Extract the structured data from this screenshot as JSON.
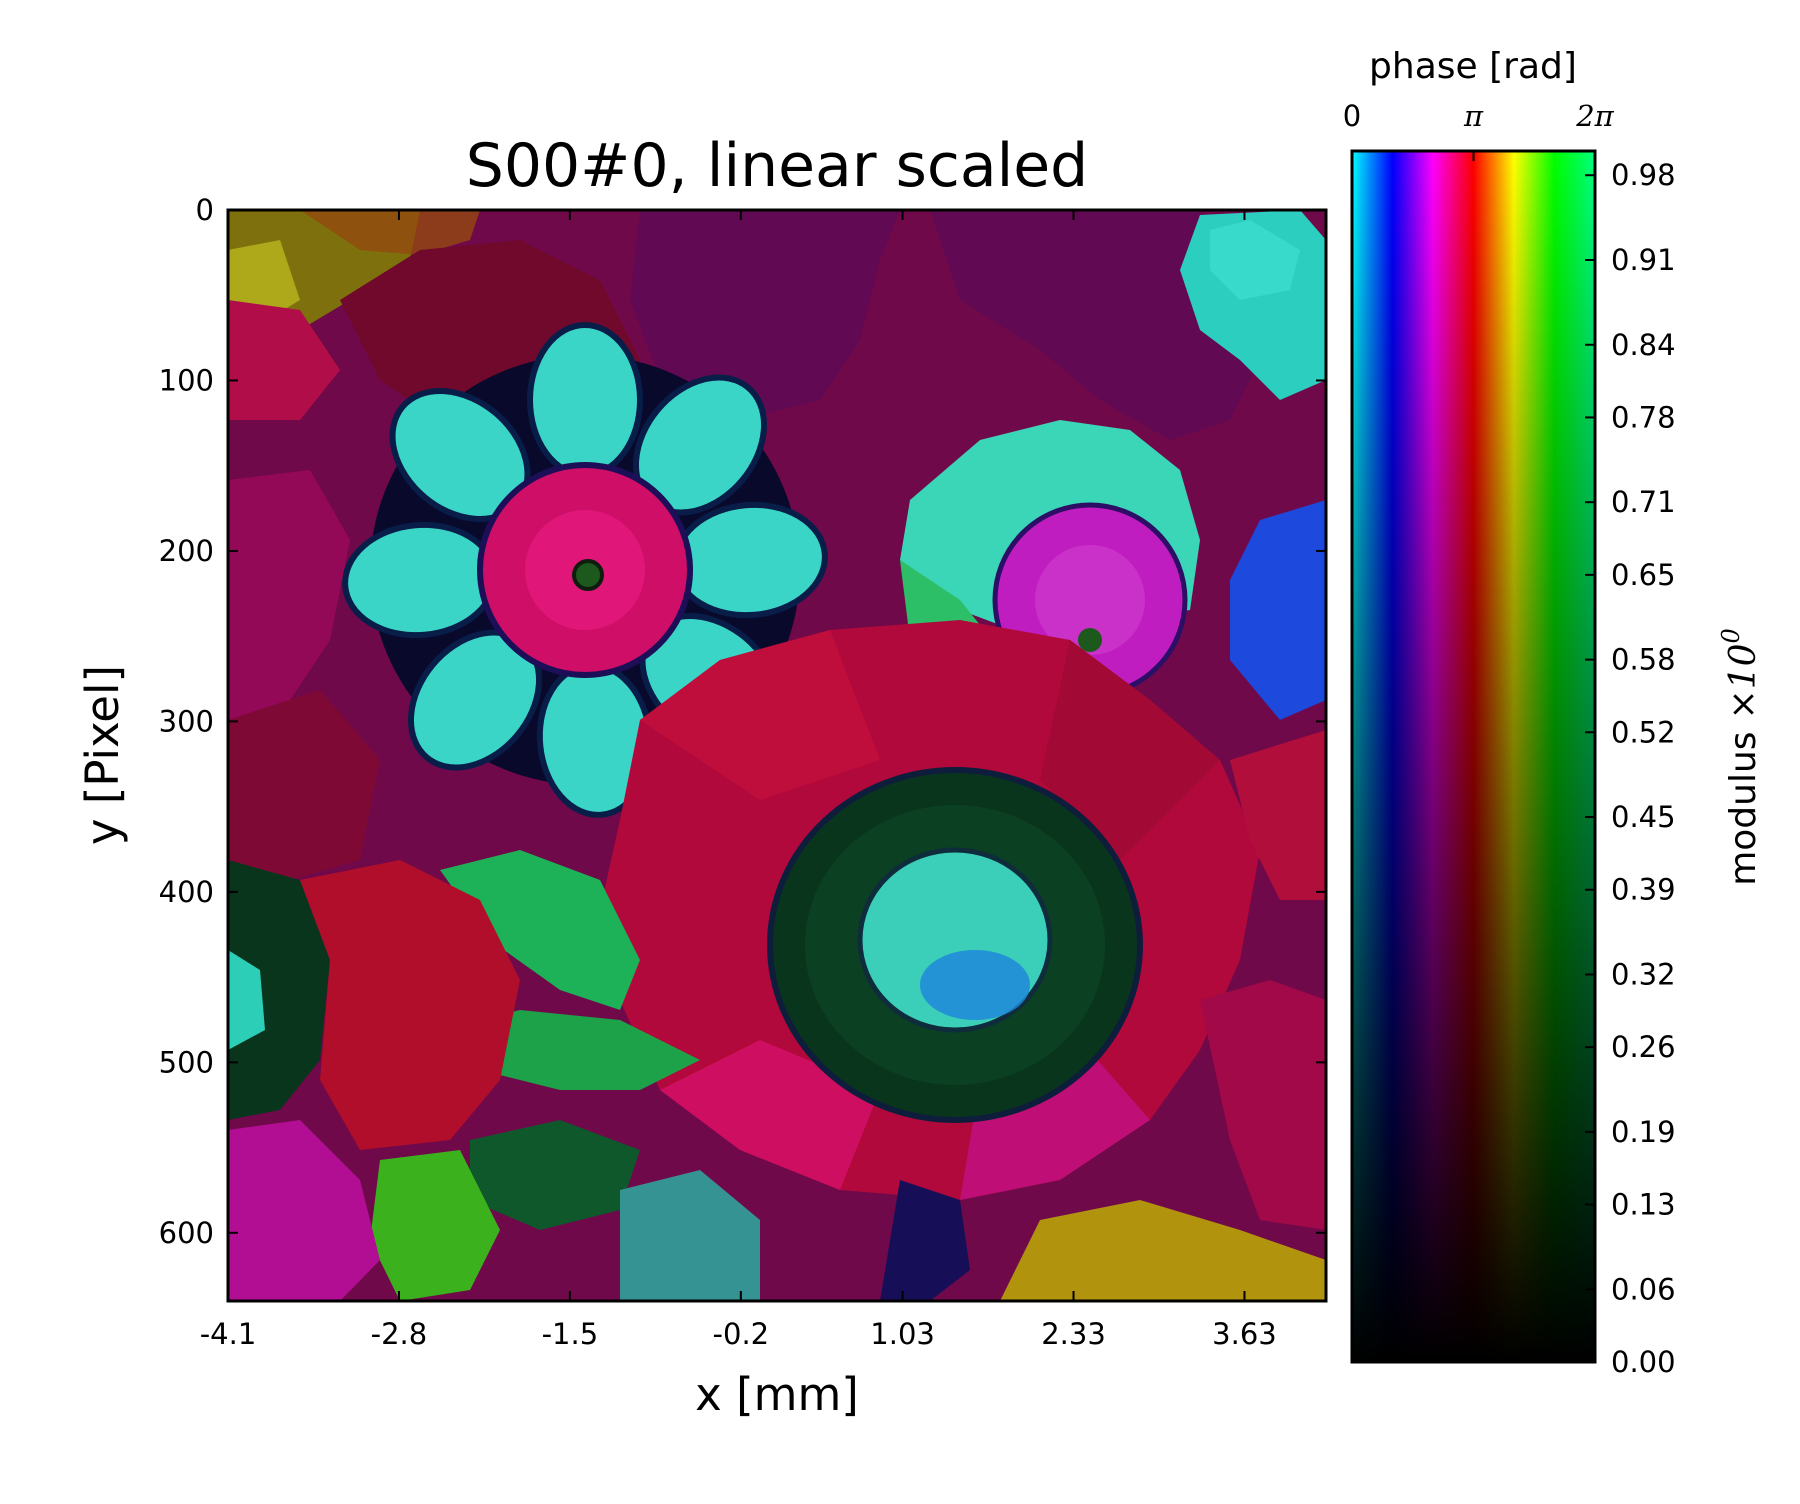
{
  "chart_data": {
    "type": "heatmap",
    "title": "S00#0, linear scaled",
    "xlabel": "x [mm]",
    "ylabel": "y [Pixel]",
    "x_ticks": [
      "-4.1",
      "-2.8",
      "-1.5",
      "-0.2",
      "1.03",
      "2.33",
      "3.63"
    ],
    "x_tick_values": [
      -4.1,
      -2.8,
      -1.5,
      -0.2,
      1.03,
      2.33,
      3.63
    ],
    "xlim": [
      -4.1,
      4.25
    ],
    "y_ticks": [
      "0",
      "100",
      "200",
      "300",
      "400",
      "500",
      "600"
    ],
    "y_tick_values": [
      0,
      100,
      200,
      300,
      400,
      500,
      600
    ],
    "ylim": [
      640,
      0
    ],
    "colorbar": {
      "phase_label": "phase [rad]",
      "phase_ticks": [
        "0",
        "π",
        "2π"
      ],
      "phase_tick_values": [
        0,
        3.1416,
        6.2832
      ],
      "modulus_label": "modulus",
      "modulus_scale": "×10",
      "modulus_exponent": "0",
      "modulus_ticks": [
        "0.98",
        "0.91",
        "0.84",
        "0.78",
        "0.71",
        "0.65",
        "0.58",
        "0.52",
        "0.45",
        "0.39",
        "0.32",
        "0.26",
        "0.19",
        "0.13",
        "0.06",
        "0.00"
      ],
      "modulus_tick_values": [
        0.98,
        0.91,
        0.84,
        0.78,
        0.71,
        0.65,
        0.58,
        0.52,
        0.45,
        0.39,
        0.32,
        0.26,
        0.19,
        0.13,
        0.06,
        0.0
      ],
      "modulus_range": [
        0,
        1
      ],
      "phase_colors": [
        "#00ffff",
        "#0000ff",
        "#ff00ff",
        "#ff0000",
        "#ffff00",
        "#00ff00"
      ]
    },
    "image_content": "colorful flower painting encoded as complex phase/modulus"
  }
}
